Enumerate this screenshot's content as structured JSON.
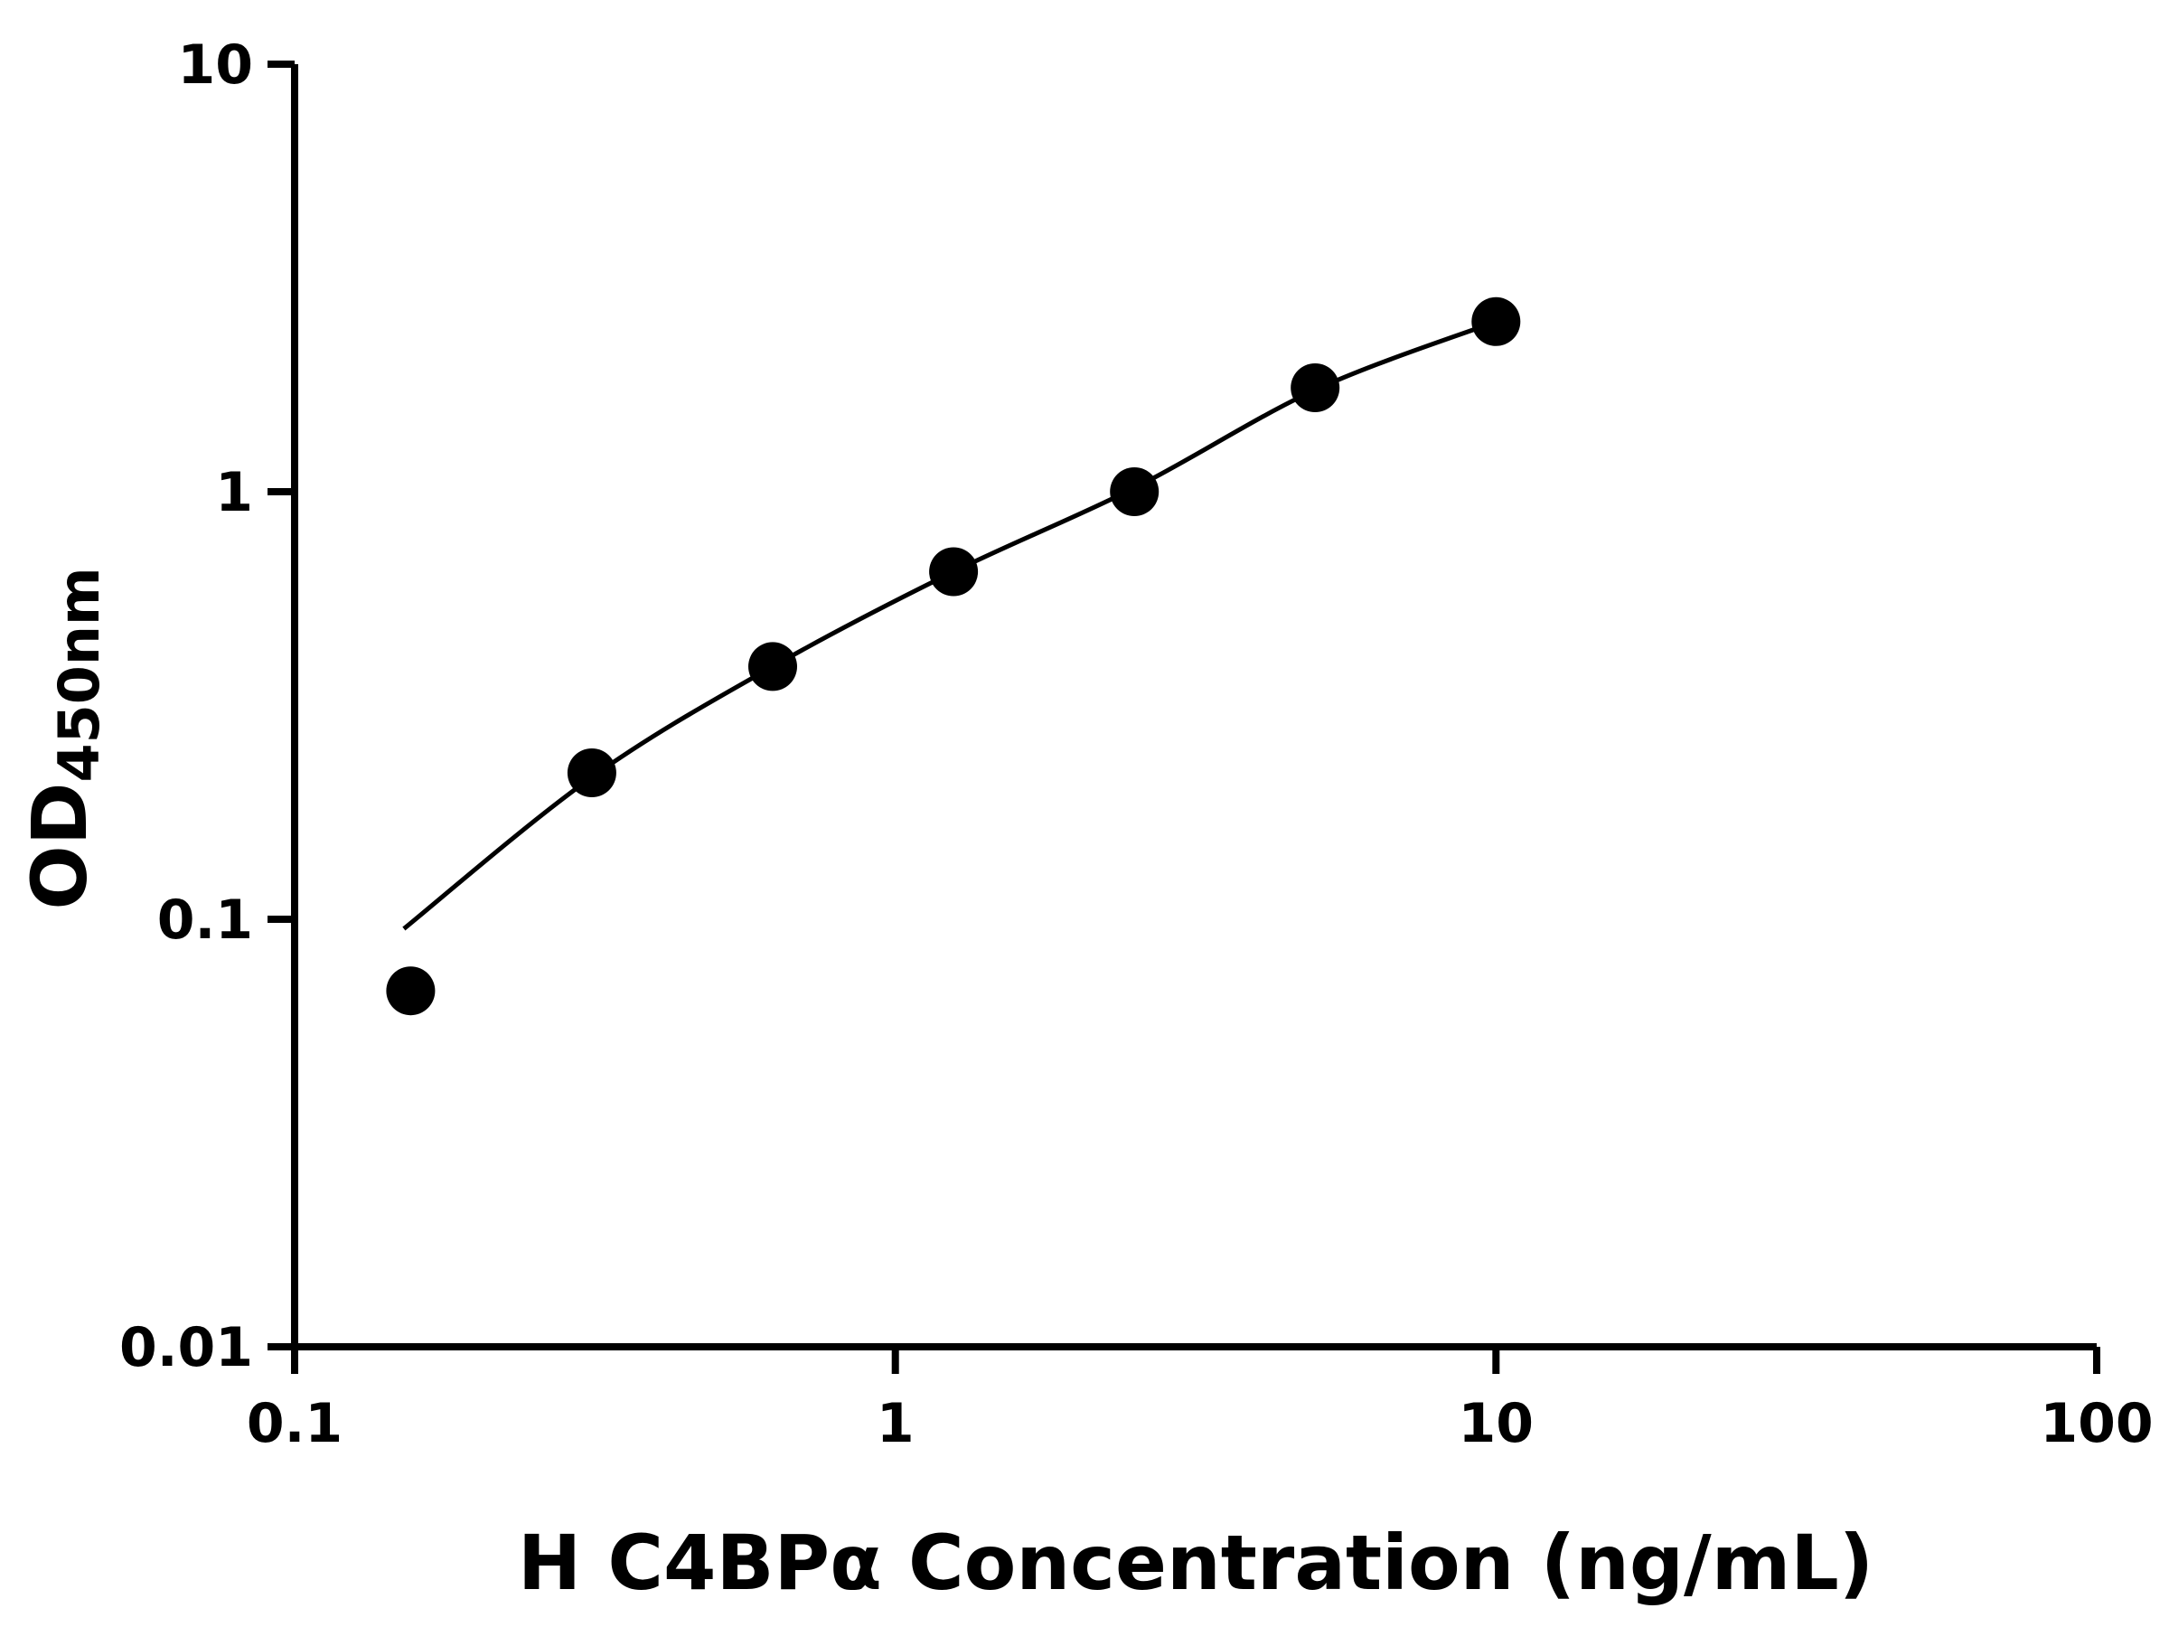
{
  "chart_data": {
    "type": "scatter",
    "title": "",
    "description": "ELISA standard curve, log-log scatter plot with fitted curve",
    "x_axis": {
      "label": "H C4BPα Concentration (ng/mL)",
      "scale": "log",
      "range": [
        0.1,
        100
      ],
      "ticks": [
        0.1,
        1,
        10,
        100
      ],
      "tick_labels": [
        "0.1",
        "1",
        "10",
        "100"
      ]
    },
    "y_axis": {
      "label_main": "OD",
      "label_sub": "450nm",
      "scale": "log",
      "range": [
        0.01,
        10
      ],
      "ticks": [
        0.01,
        0.1,
        1,
        10
      ],
      "tick_labels": [
        "0.01",
        "0.1",
        "1",
        "10"
      ]
    },
    "grid": false,
    "legend": "none",
    "series": [
      {
        "name": "standard-points",
        "type": "scatter",
        "marker": "filled-circle",
        "marker_color": "#000000",
        "points": [
          {
            "x": 0.156,
            "y": 0.068
          },
          {
            "x": 0.3125,
            "y": 0.22
          },
          {
            "x": 0.625,
            "y": 0.39
          },
          {
            "x": 1.25,
            "y": 0.65
          },
          {
            "x": 2.5,
            "y": 1.0
          },
          {
            "x": 5,
            "y": 1.75
          },
          {
            "x": 10,
            "y": 2.5
          }
        ]
      },
      {
        "name": "fit-curve",
        "type": "line",
        "line_color": "#000000",
        "points": [
          {
            "x": 0.152,
            "y": 0.095
          },
          {
            "x": 0.3125,
            "y": 0.215
          },
          {
            "x": 0.625,
            "y": 0.39
          },
          {
            "x": 1.25,
            "y": 0.65
          },
          {
            "x": 2.5,
            "y": 1.02
          },
          {
            "x": 5,
            "y": 1.73
          },
          {
            "x": 10,
            "y": 2.5
          }
        ]
      }
    ]
  },
  "styles": {
    "background": "#ffffff",
    "axis_color": "#000000",
    "marker_color": "#000000",
    "curve_color": "#000000"
  }
}
